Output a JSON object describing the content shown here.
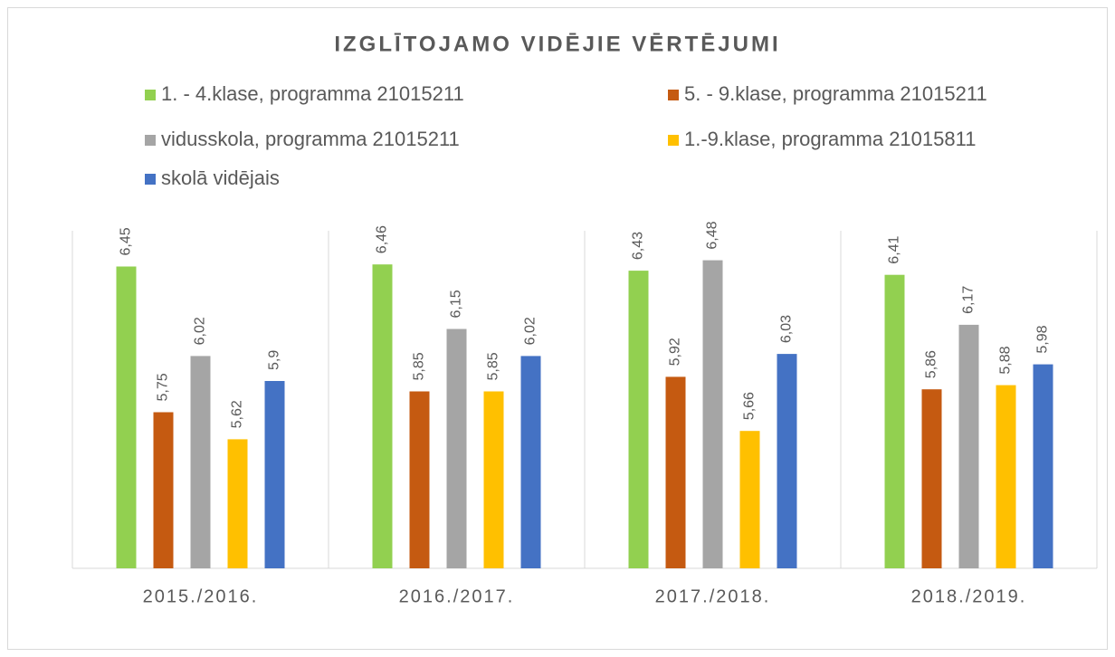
{
  "chart_data": {
    "type": "bar",
    "title": "IZGLĪTOJAMO VIDĒJIE VĒRTĒJUMI",
    "categories": [
      "2015./2016.",
      "2016./2017.",
      "2017./2018.",
      "2018./2019."
    ],
    "series": [
      {
        "name": "1. - 4.klase, programma 21015211",
        "color": "#92d050",
        "values": [
          6.45,
          6.46,
          6.43,
          6.41
        ],
        "value_labels": [
          "6,45",
          "6,46",
          "6,43",
          "6,41"
        ]
      },
      {
        "name": "5. - 9.klase, programma 21015211",
        "color": "#c55a11",
        "values": [
          5.75,
          5.85,
          5.92,
          5.86
        ],
        "value_labels": [
          "5,75",
          "5,85",
          "5,92",
          "5,86"
        ]
      },
      {
        "name": "vidusskola, programma 21015211",
        "color": "#a5a5a5",
        "values": [
          6.02,
          6.15,
          6.48,
          6.17
        ],
        "value_labels": [
          "6,02",
          "6,15",
          "6,48",
          "6,17"
        ]
      },
      {
        "name": "1.-9.klase, programma 21015811",
        "color": "#ffc000",
        "values": [
          5.62,
          5.85,
          5.66,
          5.88
        ],
        "value_labels": [
          "5,62",
          "5,85",
          "5,66",
          "5,88"
        ]
      },
      {
        "name": "skolā vidējais",
        "color": "#4472c4",
        "values": [
          5.9,
          6.02,
          6.03,
          5.98
        ],
        "value_labels": [
          "5,9",
          "6,02",
          "6,03",
          "5,98"
        ]
      }
    ],
    "ylim": [
      5,
      6.6
    ],
    "legend": "top"
  }
}
